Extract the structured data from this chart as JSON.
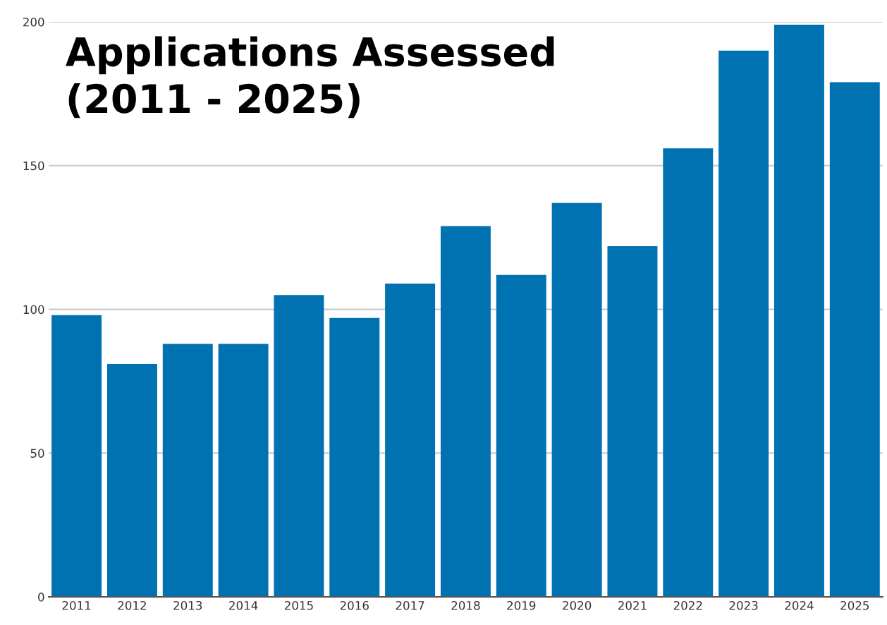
{
  "chart_data": {
    "type": "bar",
    "title": "Applications Assessed\n(2011 - 2025)",
    "categories": [
      "2011",
      "2012",
      "2013",
      "2014",
      "2015",
      "2016",
      "2017",
      "2018",
      "2019",
      "2020",
      "2021",
      "2022",
      "2023",
      "2024",
      "2025"
    ],
    "values": [
      98,
      81,
      88,
      88,
      105,
      97,
      109,
      129,
      112,
      137,
      122,
      156,
      190,
      199,
      179
    ],
    "color": "#0072b2",
    "ylim": [
      0,
      200
    ],
    "yticks": [
      0,
      50,
      100,
      150,
      200
    ],
    "grid": "y"
  }
}
